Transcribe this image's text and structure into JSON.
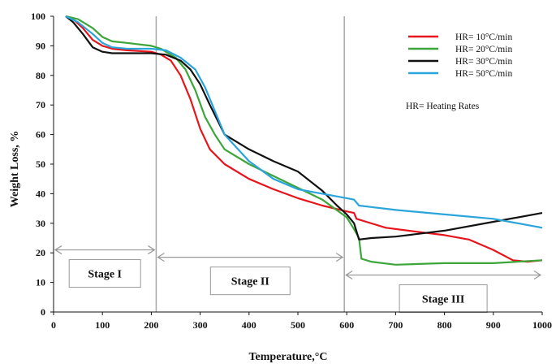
{
  "chart_data": {
    "type": "line",
    "xlabel": "Temperature,°C",
    "ylabel": "Weight Loss,  %",
    "xlim": [
      0,
      1000
    ],
    "ylim": [
      0,
      100
    ],
    "xticks": [
      0,
      100,
      200,
      300,
      400,
      500,
      600,
      700,
      800,
      900,
      1000
    ],
    "yticks": [
      0,
      10,
      20,
      30,
      40,
      50,
      60,
      70,
      80,
      90,
      100
    ],
    "grid": false,
    "legend_position": "top-right",
    "note": "HR= Heating Rates",
    "series": [
      {
        "name": "HR= 10°C/min",
        "color": "#e8141b",
        "x": [
          25,
          40,
          60,
          80,
          100,
          120,
          150,
          200,
          220,
          240,
          260,
          280,
          300,
          320,
          350,
          400,
          450,
          500,
          550,
          600,
          615,
          620,
          640,
          680,
          750,
          800,
          850,
          900,
          940,
          970,
          1000
        ],
        "y": [
          100,
          99,
          96,
          92,
          90,
          89,
          88.5,
          88,
          87,
          85,
          80,
          72,
          62,
          55,
          50,
          45,
          41.5,
          38.5,
          36,
          34,
          33.5,
          31.5,
          30.5,
          28.5,
          27,
          26,
          24.5,
          21,
          17.5,
          17,
          17.5
        ]
      },
      {
        "name": "HR= 20°C/min",
        "color": "#3ca639",
        "x": [
          25,
          50,
          80,
          100,
          120,
          150,
          200,
          220,
          250,
          270,
          290,
          310,
          330,
          350,
          400,
          450,
          500,
          550,
          600,
          615,
          625,
          630,
          650,
          700,
          800,
          900,
          1000
        ],
        "y": [
          100,
          99,
          96,
          93,
          91.5,
          91,
          90,
          89,
          86,
          82,
          75,
          66,
          60,
          55,
          50,
          46,
          42,
          38,
          32,
          28,
          25,
          18,
          17,
          16,
          16.5,
          16.5,
          17.5
        ]
      },
      {
        "name": "HR= 30°C/min",
        "color": "#111111",
        "x": [
          25,
          40,
          60,
          80,
          100,
          120,
          150,
          200,
          230,
          260,
          280,
          300,
          320,
          350,
          400,
          450,
          500,
          550,
          580,
          600,
          615,
          625,
          650,
          700,
          800,
          900,
          1000
        ],
        "y": [
          100,
          98,
          94,
          89.5,
          88,
          87.5,
          87.5,
          87.5,
          87,
          85,
          82,
          77,
          70,
          60,
          55,
          51,
          47.5,
          41,
          36,
          33,
          30,
          24.5,
          25,
          25.5,
          27.5,
          30.5,
          33.5
        ]
      },
      {
        "name": "HR= 50°C/min",
        "color": "#2aa5dc",
        "x": [
          25,
          50,
          80,
          100,
          120,
          150,
          200,
          230,
          260,
          290,
          310,
          330,
          350,
          400,
          450,
          500,
          550,
          600,
          615,
          625,
          650,
          700,
          800,
          900,
          1000
        ],
        "y": [
          100,
          98,
          94,
          91,
          89.5,
          89,
          89,
          88.5,
          86,
          82,
          76,
          68,
          60,
          51,
          45,
          41.5,
          40,
          38.5,
          38,
          36,
          35.5,
          34.5,
          33,
          31.5,
          28.5
        ]
      }
    ],
    "stages": [
      {
        "label": "Stage I",
        "x_start": 0,
        "x_end": 210,
        "y": 21
      },
      {
        "label": "Stage II",
        "x_start": 210,
        "x_end": 595,
        "y": 18.5
      },
      {
        "label": "Stage III",
        "x_start": 595,
        "x_end": 1000,
        "y": 12.5
      }
    ],
    "stage_boundaries": [
      210,
      595
    ]
  }
}
